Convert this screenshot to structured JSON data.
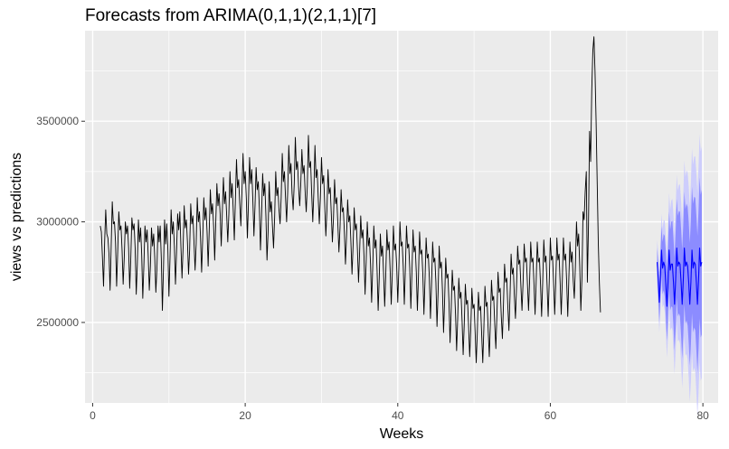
{
  "chart_data": {
    "type": "line",
    "title": "Forecasts from ARIMA(0,1,1)(2,1,1)[7]",
    "xlabel": "Weeks",
    "ylabel": "views vs predictions",
    "xlim": [
      -1,
      82
    ],
    "ylim": [
      2100000,
      3950000
    ],
    "x_ticks": [
      0,
      20,
      40,
      60,
      80
    ],
    "x_tick_labels": [
      "0",
      "20",
      "40",
      "60",
      "80"
    ],
    "y_ticks": [
      2500000,
      3000000,
      3500000
    ],
    "y_tick_labels": [
      "2500000",
      "3000000",
      "3500000"
    ],
    "grid": true,
    "background": "#ebebeb",
    "colors": {
      "actual": "#000000",
      "forecast": "#0000ff",
      "band80": "#8080ff",
      "band95": "#c8c8ff",
      "grid_major": "#ffffff"
    },
    "series": [
      {
        "kind": "actual",
        "x_start": 1.0,
        "x_step": 0.142857,
        "values": [
          2980000,
          2950000,
          2820000,
          2680000,
          2900000,
          3060000,
          2940000,
          2920000,
          2840000,
          2660000,
          2880000,
          3100000,
          2990000,
          3000000,
          2900000,
          2680000,
          2850000,
          3050000,
          2960000,
          2980000,
          2860000,
          2690000,
          2820000,
          3000000,
          2940000,
          2980000,
          2870000,
          2670000,
          2820000,
          3020000,
          2960000,
          2990000,
          2870000,
          2640000,
          2790000,
          3010000,
          2900000,
          2970000,
          2840000,
          2620000,
          2780000,
          2980000,
          2900000,
          2960000,
          2830000,
          2660000,
          2780000,
          2970000,
          2880000,
          2940000,
          2820000,
          2650000,
          2770000,
          2980000,
          2900000,
          2980000,
          2820000,
          2560000,
          2770000,
          3010000,
          2890000,
          2990000,
          2870000,
          2630000,
          2820000,
          3060000,
          2940000,
          3000000,
          2880000,
          2690000,
          2850000,
          3040000,
          2960000,
          3050000,
          2880000,
          2720000,
          2870000,
          3080000,
          2970000,
          3010000,
          2900000,
          2740000,
          2860000,
          3090000,
          2990000,
          3030000,
          2900000,
          2760000,
          2890000,
          3120000,
          3000000,
          3050000,
          2920000,
          2750000,
          2920000,
          3120000,
          3010000,
          3070000,
          2950000,
          2780000,
          2960000,
          3160000,
          3040000,
          3090000,
          2980000,
          2810000,
          3000000,
          3190000,
          3080000,
          3140000,
          3040000,
          2880000,
          3050000,
          3220000,
          3090000,
          3150000,
          3030000,
          2900000,
          3040000,
          3250000,
          3120000,
          3190000,
          3060000,
          2910000,
          3110000,
          3310000,
          3170000,
          3210000,
          3090000,
          2980000,
          3150000,
          3340000,
          3190000,
          3250000,
          3120000,
          2920000,
          3100000,
          3320000,
          3190000,
          3260000,
          3110000,
          2930000,
          3080000,
          3270000,
          3160000,
          3200000,
          3070000,
          2860000,
          3030000,
          3240000,
          3130000,
          3190000,
          3030000,
          2810000,
          2950000,
          3200000,
          3050000,
          3100000,
          2980000,
          2870000,
          3020000,
          3250000,
          3130000,
          3170000,
          3060000,
          2990000,
          3120000,
          3340000,
          3200000,
          3250000,
          3120000,
          3000000,
          3150000,
          3380000,
          3240000,
          3290000,
          3140000,
          3060000,
          3190000,
          3420000,
          3260000,
          3300000,
          3170000,
          3080000,
          3190000,
          3360000,
          3240000,
          3280000,
          3150000,
          3050000,
          3180000,
          3430000,
          3270000,
          3300000,
          3140000,
          3000000,
          3150000,
          3380000,
          3220000,
          3260000,
          3120000,
          2990000,
          3120000,
          3320000,
          3190000,
          3230000,
          3080000,
          2930000,
          3060000,
          3260000,
          3140000,
          3170000,
          3040000,
          2900000,
          3020000,
          3210000,
          3090000,
          3120000,
          2990000,
          2850000,
          2970000,
          3160000,
          3050000,
          3070000,
          2950000,
          2790000,
          2930000,
          3110000,
          3000000,
          3030000,
          2900000,
          2740000,
          2880000,
          3070000,
          2960000,
          2990000,
          2860000,
          2700000,
          2850000,
          3030000,
          2920000,
          2960000,
          2830000,
          2640000,
          2800000,
          3000000,
          2880000,
          2920000,
          2790000,
          2600000,
          2770000,
          2980000,
          2870000,
          2910000,
          2760000,
          2560000,
          2720000,
          2940000,
          2830000,
          2880000,
          2740000,
          2580000,
          2740000,
          2960000,
          2860000,
          2900000,
          2760000,
          2590000,
          2750000,
          2980000,
          2860000,
          2890000,
          2780000,
          2600000,
          2770000,
          3000000,
          2880000,
          2900000,
          2780000,
          2590000,
          2770000,
          2980000,
          2870000,
          2890000,
          2770000,
          2570000,
          2750000,
          2960000,
          2850000,
          2880000,
          2750000,
          2560000,
          2730000,
          2950000,
          2840000,
          2860000,
          2740000,
          2540000,
          2710000,
          2920000,
          2820000,
          2840000,
          2720000,
          2520000,
          2690000,
          2900000,
          2800000,
          2820000,
          2700000,
          2480000,
          2650000,
          2880000,
          2770000,
          2800000,
          2660000,
          2450000,
          2610000,
          2820000,
          2720000,
          2740000,
          2600000,
          2400000,
          2560000,
          2760000,
          2660000,
          2680000,
          2540000,
          2360000,
          2520000,
          2720000,
          2620000,
          2650000,
          2510000,
          2340000,
          2490000,
          2690000,
          2590000,
          2610000,
          2480000,
          2330000,
          2470000,
          2670000,
          2570000,
          2590000,
          2450000,
          2300000,
          2450000,
          2650000,
          2560000,
          2580000,
          2440000,
          2300000,
          2470000,
          2680000,
          2580000,
          2600000,
          2460000,
          2330000,
          2500000,
          2710000,
          2610000,
          2630000,
          2490000,
          2370000,
          2540000,
          2750000,
          2650000,
          2670000,
          2530000,
          2420000,
          2590000,
          2790000,
          2700000,
          2720000,
          2580000,
          2460000,
          2630000,
          2840000,
          2740000,
          2770000,
          2630000,
          2520000,
          2680000,
          2880000,
          2790000,
          2810000,
          2680000,
          2560000,
          2700000,
          2890000,
          2800000,
          2820000,
          2690000,
          2560000,
          2710000,
          2900000,
          2800000,
          2820000,
          2690000,
          2540000,
          2700000,
          2900000,
          2800000,
          2820000,
          2690000,
          2530000,
          2700000,
          2910000,
          2800000,
          2830000,
          2690000,
          2530000,
          2700000,
          2920000,
          2810000,
          2830000,
          2700000,
          2540000,
          2700000,
          2920000,
          2810000,
          2840000,
          2700000,
          2540000,
          2710000,
          2920000,
          2810000,
          2840000,
          2700000,
          2530000,
          2720000,
          2900000,
          2800000,
          2850000,
          2710000,
          2620000,
          2780000,
          3000000,
          2880000,
          2940000,
          2780000,
          2560000,
          2720000,
          3050000,
          3010000,
          3150000,
          3250000,
          2700000,
          2980000,
          3450000,
          3300000,
          3650000,
          3850000,
          3920000,
          3750000,
          3500000,
          3200000,
          2900000,
          2700000,
          2550000
        ]
      },
      {
        "kind": "forecast",
        "x_start": 74.0,
        "x_step": 0.142857,
        "values": [
          2800000,
          2720000,
          2600000,
          2720000,
          2860000,
          2770000,
          2800000,
          2780000,
          2690000,
          2580000,
          2700000,
          2860000,
          2760000,
          2790000,
          2790000,
          2700000,
          2590000,
          2710000,
          2870000,
          2780000,
          2800000,
          2790000,
          2700000,
          2590000,
          2710000,
          2870000,
          2780000,
          2800000,
          2780000,
          2700000,
          2590000,
          2700000,
          2860000,
          2770000,
          2800000,
          2790000,
          2700000,
          2590000,
          2710000,
          2870000,
          2780000,
          2800000
        ]
      }
    ],
    "intervals": {
      "level80_halfwidth": [
        70000,
        85000,
        100000,
        110000,
        120000,
        130000,
        140000,
        150000,
        160000,
        170000,
        180000,
        190000,
        200000,
        210000,
        215000,
        220000,
        230000,
        240000,
        245000,
        250000,
        255000,
        260000,
        265000,
        270000,
        275000,
        280000,
        285000,
        290000,
        295000,
        300000,
        305000,
        310000,
        315000,
        320000,
        325000,
        330000,
        335000,
        340000,
        345000,
        350000,
        355000,
        360000
      ],
      "level95_halfwidth": [
        110000,
        130000,
        150000,
        165000,
        180000,
        195000,
        210000,
        225000,
        240000,
        255000,
        270000,
        285000,
        300000,
        315000,
        325000,
        335000,
        345000,
        355000,
        365000,
        375000,
        385000,
        395000,
        405000,
        415000,
        425000,
        435000,
        445000,
        455000,
        465000,
        475000,
        485000,
        495000,
        505000,
        515000,
        525000,
        535000,
        545000,
        555000,
        560000,
        565000,
        570000,
        575000
      ]
    }
  }
}
